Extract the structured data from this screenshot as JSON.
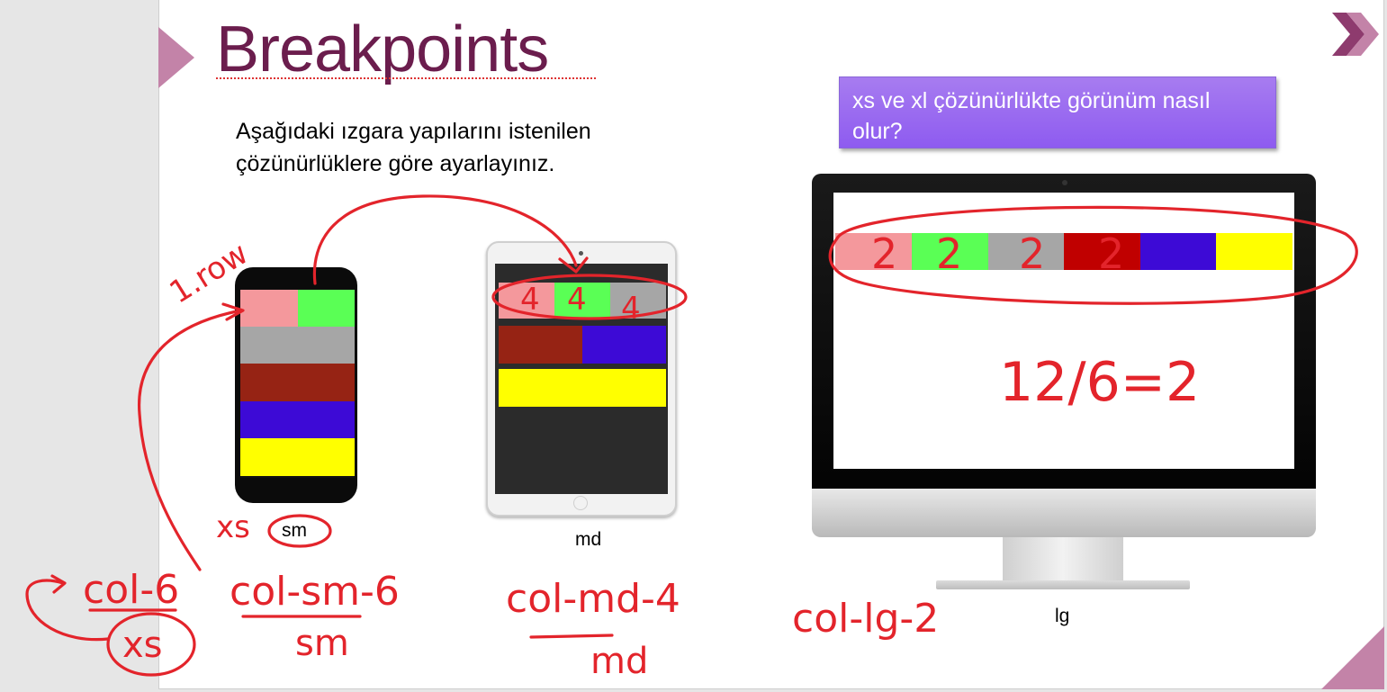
{
  "slide": {
    "title": "Breakpoints",
    "instruction_line1": "Aşağıdaki ızgara yapılarını istenilen",
    "instruction_line2": "çözünürlüklere göre ayarlayınız.",
    "callout": "xs ve xl çözünürlükte görünüm nasıl olur?",
    "labels": {
      "sm": "sm",
      "md": "md",
      "lg": "lg"
    }
  },
  "colors": {
    "title": "#6b1d4d",
    "accent": "#c383a8",
    "callout": "#9b6cf0",
    "pink": "#f4989c",
    "green": "#5aff55",
    "gray": "#a6a6a6",
    "brown": "#962314",
    "red": "#c00000",
    "blue": "#3d0ad6",
    "yellow": "#ffff00"
  },
  "annotations": {
    "phone_row": "1.row",
    "tablet_cols": [
      "4",
      "4",
      "4"
    ],
    "monitor_cols": [
      "2",
      "2",
      "2",
      "2"
    ],
    "formula": "12/6=2",
    "xs_near_sm": "xs",
    "col_xs": "col-6",
    "col_xs_circled": "xs",
    "col_sm": "col-sm-6",
    "col_sm_under": "sm",
    "col_md": "col-md-4",
    "col_md_under": "md",
    "col_lg": "col-lg-2"
  }
}
